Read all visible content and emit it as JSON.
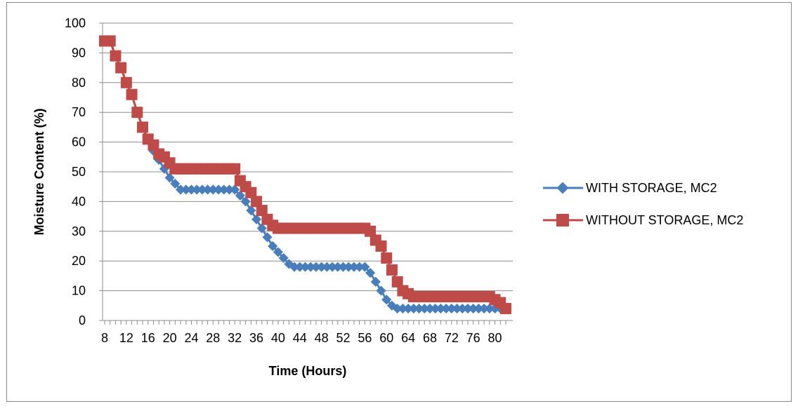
{
  "chart_data": {
    "type": "line",
    "xlabel": "Time (Hours)",
    "ylabel": "Moisture Content (%)",
    "ylim": [
      0,
      100
    ],
    "yticks": [
      0,
      10,
      20,
      30,
      40,
      50,
      60,
      70,
      80,
      90,
      100
    ],
    "xlim": [
      8,
      82
    ],
    "xtick_labels": [
      8,
      12,
      16,
      20,
      24,
      28,
      32,
      36,
      40,
      44,
      48,
      52,
      56,
      60,
      64,
      68,
      72,
      76,
      80
    ],
    "grid": true,
    "legend_position": "right",
    "series": [
      {
        "name": "WITH STORAGE, MC2",
        "color": "#4a7ebb",
        "marker": "diamond",
        "x": [
          8,
          9,
          10,
          11,
          12,
          13,
          14,
          15,
          16,
          17,
          18,
          19,
          20,
          21,
          22,
          23,
          24,
          25,
          26,
          27,
          28,
          29,
          30,
          31,
          32,
          33,
          34,
          35,
          36,
          37,
          38,
          39,
          40,
          41,
          42,
          43,
          44,
          45,
          46,
          47,
          48,
          49,
          50,
          51,
          52,
          53,
          54,
          55,
          56,
          57,
          58,
          59,
          60,
          61,
          62,
          63,
          64,
          65,
          66,
          67,
          68,
          69,
          70,
          71,
          72,
          73,
          74,
          75,
          76,
          77,
          78,
          79,
          80,
          81,
          82
        ],
        "y": [
          94,
          94,
          89,
          85,
          80,
          76,
          70,
          65,
          61,
          57,
          54,
          51,
          48,
          46,
          44,
          44,
          44,
          44,
          44,
          44,
          44,
          44,
          44,
          44,
          44,
          42,
          40,
          37,
          34,
          31,
          28,
          25,
          23,
          21,
          19,
          18,
          18,
          18,
          18,
          18,
          18,
          18,
          18,
          18,
          18,
          18,
          18,
          18,
          18,
          16,
          13,
          10,
          7,
          5,
          4,
          4,
          4,
          4,
          4,
          4,
          4,
          4,
          4,
          4,
          4,
          4,
          4,
          4,
          4,
          4,
          4,
          4,
          4,
          4,
          4
        ]
      },
      {
        "name": "WITHOUT STORAGE, MC2",
        "color": "#be4b48",
        "marker": "square",
        "x": [
          8,
          9,
          10,
          11,
          12,
          13,
          14,
          15,
          16,
          17,
          18,
          19,
          20,
          21,
          22,
          23,
          24,
          25,
          26,
          27,
          28,
          29,
          30,
          31,
          32,
          33,
          34,
          35,
          36,
          37,
          38,
          39,
          40,
          41,
          42,
          43,
          44,
          45,
          46,
          47,
          48,
          49,
          50,
          51,
          52,
          53,
          54,
          55,
          56,
          57,
          58,
          59,
          60,
          61,
          62,
          63,
          64,
          65,
          66,
          67,
          68,
          69,
          70,
          71,
          72,
          73,
          74,
          75,
          76,
          77,
          78,
          79,
          80,
          81,
          82
        ],
        "y": [
          94,
          94,
          89,
          85,
          80,
          76,
          70,
          65,
          61,
          59,
          56,
          55,
          53,
          51,
          51,
          51,
          51,
          51,
          51,
          51,
          51,
          51,
          51,
          51,
          51,
          47,
          45,
          43,
          40,
          37,
          34,
          32,
          31,
          31,
          31,
          31,
          31,
          31,
          31,
          31,
          31,
          31,
          31,
          31,
          31,
          31,
          31,
          31,
          31,
          30,
          27,
          25,
          21,
          17,
          13,
          10,
          9,
          8,
          8,
          8,
          8,
          8,
          8,
          8,
          8,
          8,
          8,
          8,
          8,
          8,
          8,
          8,
          7,
          6,
          4
        ]
      }
    ]
  }
}
